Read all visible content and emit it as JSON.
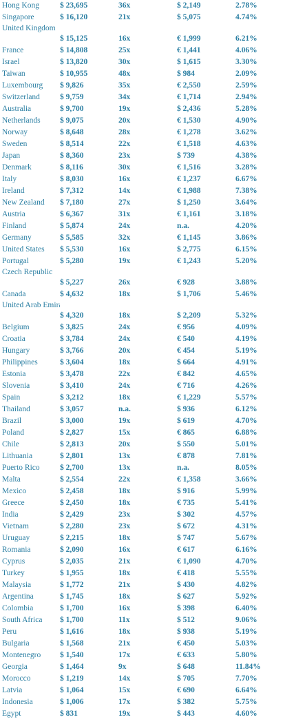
{
  "rows": [
    {
      "country": "Hong Kong",
      "price": "$ 23,695",
      "ratio": "36x",
      "rent": "$ 2,149",
      "yield": "2.78%"
    },
    {
      "country": "Singapore",
      "price": "$ 16,120",
      "ratio": "21x",
      "rent": "$ 5,075",
      "yield": "4.74%"
    },
    {
      "country": "United Kingdom",
      "price": "$ 15,125",
      "ratio": "16x",
      "rent": "€ 1,999",
      "yield": "6.21%",
      "wrap": true
    },
    {
      "country": "France",
      "price": "$ 14,808",
      "ratio": "25x",
      "rent": "€ 1,441",
      "yield": "4.06%"
    },
    {
      "country": "Israel",
      "price": "$ 13,820",
      "ratio": "30x",
      "rent": "$ 1,615",
      "yield": "3.30%"
    },
    {
      "country": "Taiwan",
      "price": "$ 10,955",
      "ratio": "48x",
      "rent": "$ 984",
      "yield": "2.09%"
    },
    {
      "country": "Luxembourg",
      "price": "$ 9,826",
      "ratio": "35x",
      "rent": "€ 2,550",
      "yield": "2.59%"
    },
    {
      "country": "Switzerland",
      "price": "$ 9,759",
      "ratio": "34x",
      "rent": "€ 1,714",
      "yield": "2.94%"
    },
    {
      "country": "Australia",
      "price": "$ 9,700",
      "ratio": "19x",
      "rent": "$ 2,436",
      "yield": "5.28%"
    },
    {
      "country": "Netherlands",
      "price": "$ 9,075",
      "ratio": "20x",
      "rent": "€ 1,530",
      "yield": "4.90%"
    },
    {
      "country": "Norway",
      "price": "$ 8,648",
      "ratio": "28x",
      "rent": "€ 1,278",
      "yield": "3.62%"
    },
    {
      "country": "Sweden",
      "price": "$ 8,514",
      "ratio": "22x",
      "rent": "€ 1,518",
      "yield": "4.63%"
    },
    {
      "country": "Japan",
      "price": "$ 8,360",
      "ratio": "23x",
      "rent": "$ 739",
      "yield": "4.38%"
    },
    {
      "country": "Denmark",
      "price": "$ 8,116",
      "ratio": "30x",
      "rent": "€ 1,516",
      "yield": "3.28%"
    },
    {
      "country": "Italy",
      "price": "$ 8,030",
      "ratio": "16x",
      "rent": "€ 1,237",
      "yield": "6.67%"
    },
    {
      "country": "Ireland",
      "price": "$ 7,312",
      "ratio": "14x",
      "rent": "€ 1,988",
      "yield": "7.38%"
    },
    {
      "country": "New Zealand",
      "price": "$ 7,180",
      "ratio": "27x",
      "rent": "$ 1,250",
      "yield": "3.64%"
    },
    {
      "country": "Austria",
      "price": "$ 6,367",
      "ratio": "31x",
      "rent": "€ 1,161",
      "yield": "3.18%"
    },
    {
      "country": "Finland",
      "price": "$ 5,874",
      "ratio": "24x",
      "rent": "n.a.",
      "yield": "4.20%"
    },
    {
      "country": "Germany",
      "price": "$ 5,585",
      "ratio": "32x",
      "rent": "€ 1,145",
      "yield": "3.86%"
    },
    {
      "country": "United States",
      "price": "$ 5,530",
      "ratio": "16x",
      "rent": "$ 2,775",
      "yield": "6.15%"
    },
    {
      "country": "Portugal",
      "price": "$ 5,280",
      "ratio": "19x",
      "rent": "€ 1,243",
      "yield": "5.20%"
    },
    {
      "country": "Czech Republic",
      "price": "$ 5,227",
      "ratio": "26x",
      "rent": "€ 928",
      "yield": "3.88%",
      "wrap": true
    },
    {
      "country": "Canada",
      "price": "$ 4,632",
      "ratio": "18x",
      "rent": "$ 1,706",
      "yield": "5.46%"
    },
    {
      "country": "United Arab Emirates",
      "price": "$ 4,320",
      "ratio": "18x",
      "rent": "$ 2,209",
      "yield": "5.32%",
      "wrap": true
    },
    {
      "country": "Belgium",
      "price": "$ 3,825",
      "ratio": "24x",
      "rent": "€ 956",
      "yield": "4.09%"
    },
    {
      "country": "Croatia",
      "price": "$ 3,784",
      "ratio": "24x",
      "rent": "€ 540",
      "yield": "4.19%"
    },
    {
      "country": "Hungary",
      "price": "$ 3,766",
      "ratio": "20x",
      "rent": "€ 454",
      "yield": "5.19%"
    },
    {
      "country": "Philippines",
      "price": "$ 3,604",
      "ratio": "18x",
      "rent": "$ 664",
      "yield": "4.91%"
    },
    {
      "country": "Estonia",
      "price": "$ 3,478",
      "ratio": "22x",
      "rent": "€ 842",
      "yield": "4.65%"
    },
    {
      "country": "Slovenia",
      "price": "$ 3,410",
      "ratio": "24x",
      "rent": "€ 716",
      "yield": "4.26%"
    },
    {
      "country": "Spain",
      "price": "$ 3,212",
      "ratio": "18x",
      "rent": "€ 1,229",
      "yield": "5.57%"
    },
    {
      "country": "Thailand",
      "price": "$ 3,057",
      "ratio": "n.a.",
      "rent": "$ 936",
      "yield": "6.12%"
    },
    {
      "country": "Brazil",
      "price": "$ 3,000",
      "ratio": "19x",
      "rent": "$ 619",
      "yield": "4.70%"
    },
    {
      "country": "Poland",
      "price": "$ 2,827",
      "ratio": "15x",
      "rent": "€ 865",
      "yield": "6.88%"
    },
    {
      "country": "Chile",
      "price": "$ 2,813",
      "ratio": "20x",
      "rent": "$ 550",
      "yield": "5.01%"
    },
    {
      "country": "Lithuania",
      "price": "$ 2,801",
      "ratio": "13x",
      "rent": "€ 878",
      "yield": "7.81%"
    },
    {
      "country": "Puerto Rico",
      "price": "$ 2,700",
      "ratio": "13x",
      "rent": "n.a.",
      "yield": "8.05%"
    },
    {
      "country": "Malta",
      "price": "$ 2,554",
      "ratio": "22x",
      "rent": "€ 1,358",
      "yield": "3.66%"
    },
    {
      "country": "Mexico",
      "price": "$ 2,458",
      "ratio": "18x",
      "rent": "$ 916",
      "yield": "5.99%"
    },
    {
      "country": "Greece",
      "price": "$ 2,450",
      "ratio": "18x",
      "rent": "€ 735",
      "yield": "5.41%"
    },
    {
      "country": "India",
      "price": "$ 2,429",
      "ratio": "23x",
      "rent": "$ 302",
      "yield": "4.57%"
    },
    {
      "country": "Vietnam",
      "price": "$ 2,280",
      "ratio": "23x",
      "rent": "$ 672",
      "yield": "4.31%"
    },
    {
      "country": "Uruguay",
      "price": "$ 2,215",
      "ratio": "18x",
      "rent": "$ 747",
      "yield": "5.67%"
    },
    {
      "country": "Romania",
      "price": "$ 2,090",
      "ratio": "16x",
      "rent": "€ 617",
      "yield": "6.16%"
    },
    {
      "country": "Cyprus",
      "price": "$ 2,035",
      "ratio": "21x",
      "rent": "€ 1,090",
      "yield": "4.70%"
    },
    {
      "country": "Turkey",
      "price": "$ 1,955",
      "ratio": "18x",
      "rent": "€ 418",
      "yield": "5.55%"
    },
    {
      "country": "Malaysia",
      "price": "$ 1,772",
      "ratio": "21x",
      "rent": "$ 430",
      "yield": "4.82%"
    },
    {
      "country": "Argentina",
      "price": "$ 1,745",
      "ratio": "18x",
      "rent": "$ 627",
      "yield": "5.92%"
    },
    {
      "country": "Colombia",
      "price": "$ 1,700",
      "ratio": "16x",
      "rent": "$ 398",
      "yield": "6.40%"
    },
    {
      "country": "South Africa",
      "price": "$ 1,700",
      "ratio": "11x",
      "rent": "$ 512",
      "yield": "9.06%"
    },
    {
      "country": "Peru",
      "price": "$ 1,616",
      "ratio": "18x",
      "rent": "$ 938",
      "yield": "5.19%"
    },
    {
      "country": "Bulgaria",
      "price": "$ 1,568",
      "ratio": "21x",
      "rent": "€ 450",
      "yield": "5.03%"
    },
    {
      "country": "Montenegro",
      "price": "$ 1,540",
      "ratio": "17x",
      "rent": "€ 633",
      "yield": "5.80%"
    },
    {
      "country": "Georgia",
      "price": "$ 1,464",
      "ratio": "9x",
      "rent": "$ 648",
      "yield": "11.84%"
    },
    {
      "country": "Morocco",
      "price": "$ 1,219",
      "ratio": "14x",
      "rent": "$ 705",
      "yield": "7.70%"
    },
    {
      "country": "Latvia",
      "price": "$ 1,064",
      "ratio": "15x",
      "rent": "€ 690",
      "yield": "6.64%"
    },
    {
      "country": "Indonesia",
      "price": "$ 1,006",
      "ratio": "17x",
      "rent": "$ 382",
      "yield": "5.75%"
    },
    {
      "country": "Egypt",
      "price": "$ 831",
      "ratio": "19x",
      "rent": "$ 443",
      "yield": "4.60%"
    }
  ]
}
